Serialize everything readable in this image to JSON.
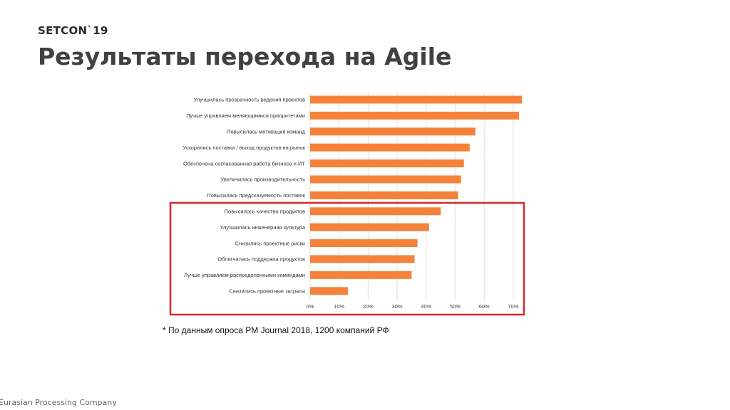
{
  "logo": {
    "text": "SETCON`19"
  },
  "title": "Результаты перехода на Agile",
  "footnote": "* По данным опроса PM Journal 2018, 1200 компаний РФ",
  "footer": "Eurasian Processing Company",
  "chart_data": {
    "type": "bar",
    "orientation": "horizontal",
    "categories": [
      "Улучшилась прозрачность ведения проектов",
      "Лучше управляем меняющимися приоритетами",
      "Повысилась мотивация команд",
      "Ускорились поставки / выход продуктов на рынок",
      "Обеспечена согласованная работа бизнеса и ИТ",
      "Увеличилась производительность",
      "Повысилась предсказуемость поставок",
      "Повысилось качество продуктов",
      "Улучшилась инженерная культура",
      "Снизились проектные риски",
      "Облегчилась поддержка продуктов",
      "Лучше управляем распределенными командами",
      "Снизились проектные затраты"
    ],
    "values": [
      73,
      72,
      57,
      55,
      53,
      52,
      51,
      45,
      41,
      37,
      36,
      35,
      13
    ],
    "xlim": [
      0,
      72
    ],
    "ticks": [
      0,
      10,
      20,
      30,
      40,
      50,
      60,
      70
    ],
    "tick_labels": [
      "0%",
      "10%",
      "20%",
      "30%",
      "40%",
      "50%",
      "60%",
      "70%"
    ],
    "highlight_range": [
      7,
      12
    ],
    "grid": true,
    "bar_color": "#f5823a",
    "grid_color": "#e0e0e0",
    "highlight_color": "#d9262b"
  }
}
